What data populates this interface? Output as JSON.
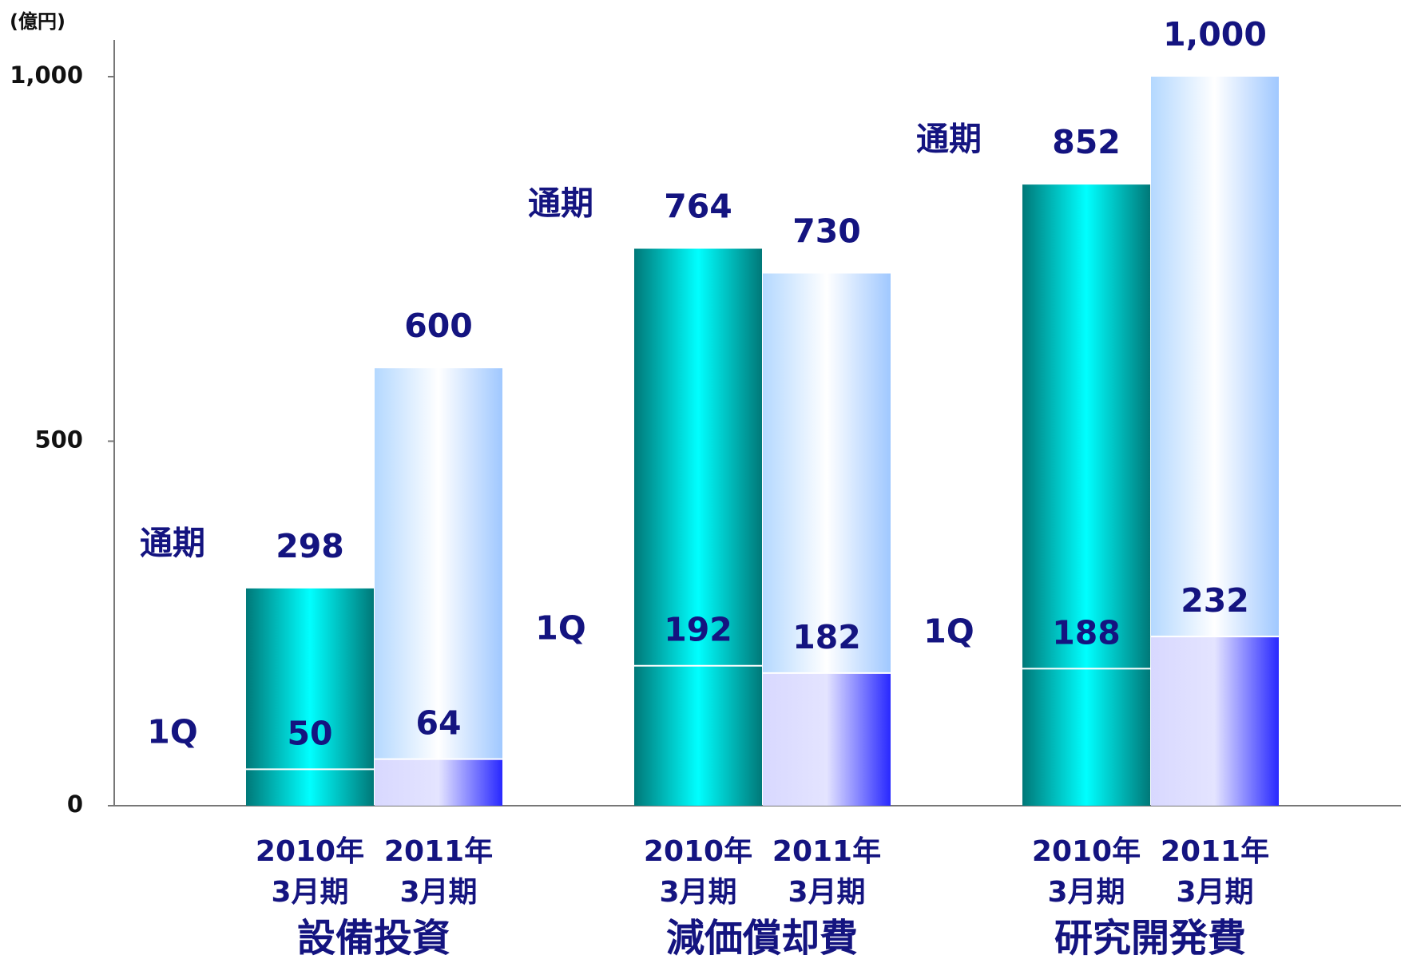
{
  "chart_data": {
    "type": "bar",
    "unit_label": "(億円)",
    "groups": [
      "設備投資",
      "減価償却費",
      "研究開発費"
    ],
    "periods": [
      [
        "2010年",
        "3月期"
      ],
      [
        "2011年",
        "3月期"
      ]
    ],
    "series": [
      {
        "name": "通期",
        "values": [
          298,
          600,
          764,
          730,
          852,
          1000
        ],
        "value_labels": [
          "298",
          "600",
          "764",
          "730",
          "852",
          "1,000"
        ],
        "colors": [
          [
            "#007878",
            "#00ffff",
            "#007878"
          ],
          [
            "#b4d8ff",
            "#ffffff",
            "#a0c8ff"
          ]
        ]
      },
      {
        "name": "1Q",
        "values": [
          50,
          64,
          192,
          182,
          188,
          232
        ],
        "colors": [
          [
            "#007878",
            "#00ffff",
            "#007878"
          ],
          [
            "#d8d8ff",
            "#e4e4ff",
            "#2828ff"
          ]
        ]
      }
    ],
    "ylim": [
      0,
      1000
    ],
    "yticks": [
      0,
      500,
      {
        "value": 1000,
        "label": "1,000"
      }
    ]
  }
}
